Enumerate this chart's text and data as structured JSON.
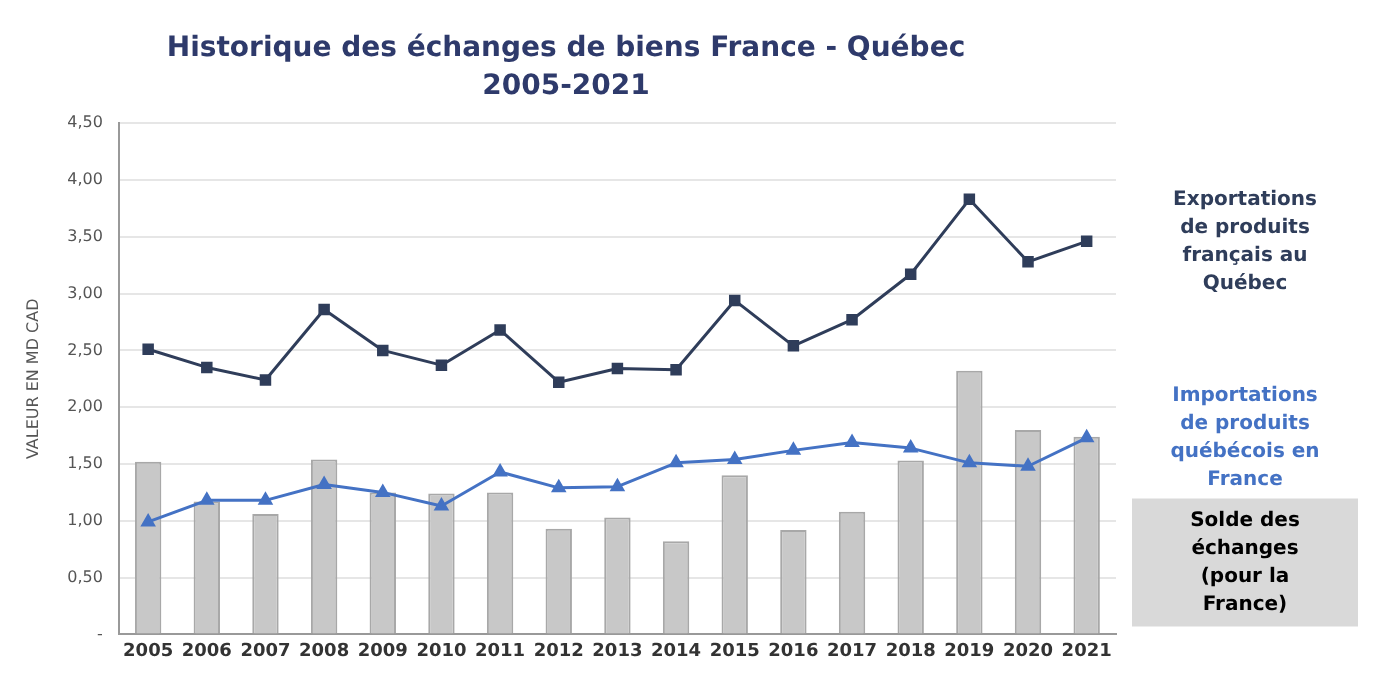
{
  "chart_data": {
    "type": "bar",
    "title": "Historique des échanges de biens France - Québec",
    "subtitle": "2005-2021",
    "ylabel": "VALEUR EN MD CAD",
    "categories": [
      "2005",
      "2006",
      "2007",
      "2008",
      "2009",
      "2010",
      "2011",
      "2012",
      "2013",
      "2014",
      "2015",
      "2016",
      "2017",
      "2018",
      "2019",
      "2020",
      "2021"
    ],
    "series": [
      {
        "name": "Solde des échanges (pour la France)",
        "color": "#c8c8c8",
        "values": [
          1.52,
          1.17,
          1.06,
          1.54,
          1.25,
          1.24,
          1.25,
          0.93,
          1.03,
          0.82,
          1.4,
          0.92,
          1.08,
          1.53,
          2.32,
          1.8,
          1.74
        ]
      },
      {
        "name": "Exportations de produits français au Québec",
        "type": "line",
        "color": "#2f3d5a",
        "marker": "square",
        "values": [
          2.51,
          2.35,
          2.24,
          2.86,
          2.5,
          2.37,
          2.68,
          2.22,
          2.34,
          2.33,
          2.94,
          2.54,
          2.77,
          3.17,
          3.83,
          3.28,
          3.46
        ]
      },
      {
        "name": "Importations de produits québécois en France",
        "type": "line",
        "color": "#4472c4",
        "marker": "triangle",
        "values": [
          0.99,
          1.18,
          1.18,
          1.32,
          1.25,
          1.13,
          1.43,
          1.29,
          1.3,
          1.51,
          1.54,
          1.62,
          1.69,
          1.64,
          1.51,
          1.48,
          1.73
        ]
      }
    ],
    "ylim": [
      0,
      4.5
    ],
    "yticks": [
      {
        "value": 0,
        "label": "-"
      },
      {
        "value": 0.5,
        "label": "0,50"
      },
      {
        "value": 1,
        "label": "1,00"
      },
      {
        "value": 1.5,
        "label": "1,50"
      },
      {
        "value": 2,
        "label": "2,00"
      },
      {
        "value": 2.5,
        "label": "2,50"
      },
      {
        "value": 3,
        "label": "3,00"
      },
      {
        "value": 3.5,
        "label": "3,50"
      },
      {
        "value": 4,
        "label": "4,00"
      },
      {
        "value": 4.5,
        "label": "4,50"
      }
    ],
    "grid": "y",
    "legend": false
  }
}
